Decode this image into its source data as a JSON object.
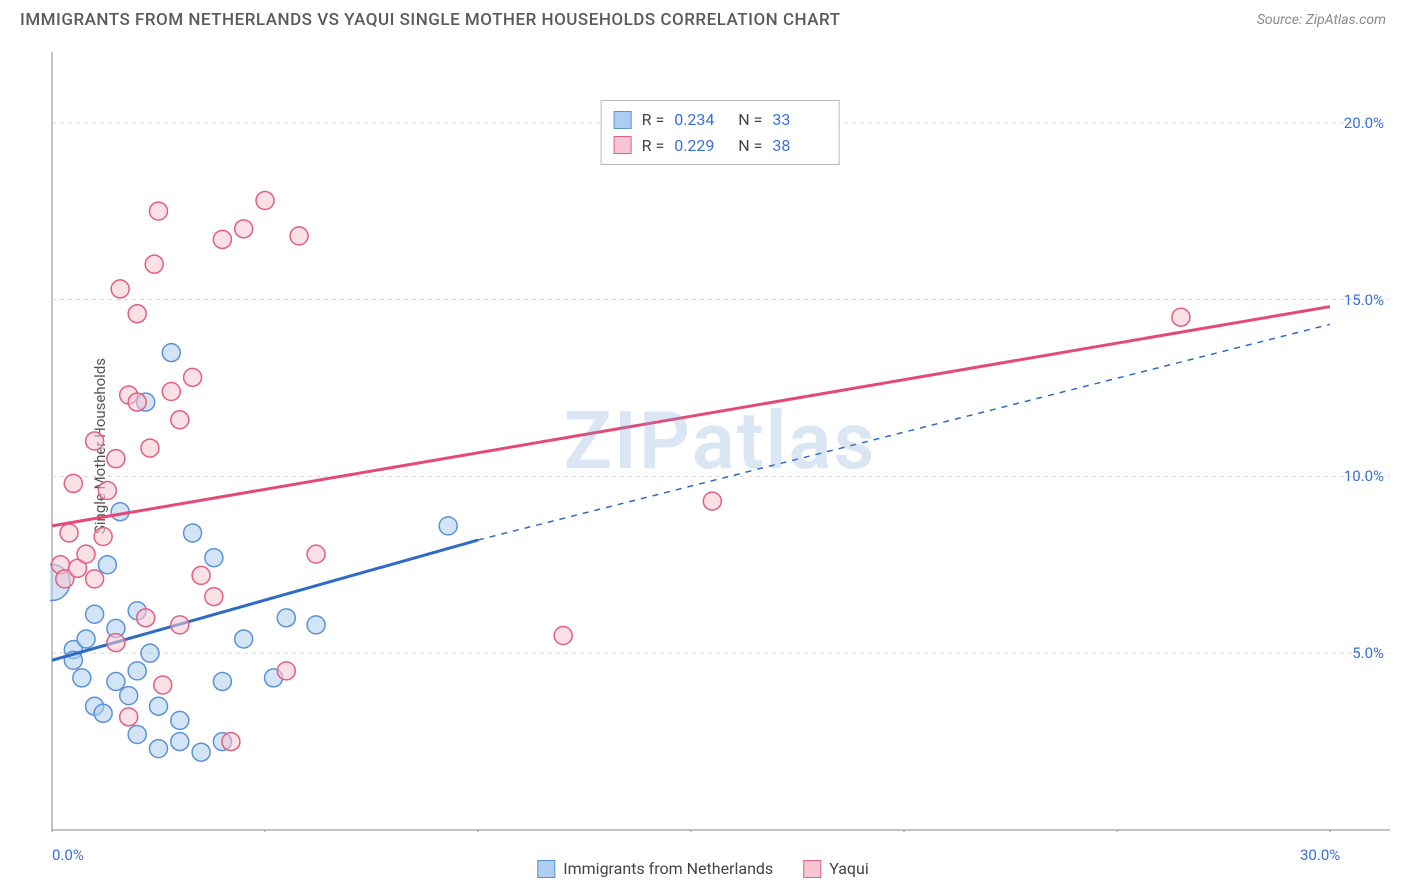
{
  "header": {
    "title": "IMMIGRANTS FROM NETHERLANDS VS YAQUI SINGLE MOTHER HOUSEHOLDS CORRELATION CHART",
    "source": "Source: ZipAtlas.com"
  },
  "ylabel": "Single Mother Households",
  "watermark": "ZIPatlas",
  "chart": {
    "type": "scatter",
    "xlim": [
      0,
      30
    ],
    "ylim": [
      0,
      22
    ],
    "x_ticks": [
      0,
      5,
      10,
      15,
      20,
      25,
      30
    ],
    "x_tick_labels": {
      "0": "0.0%",
      "30": "30.0%"
    },
    "y_gridlines": [
      5,
      10,
      15,
      20
    ],
    "y_tick_labels": {
      "5": "5.0%",
      "10": "10.0%",
      "15": "15.0%",
      "20": "20.0%"
    },
    "grid_color": "#d8d8d8",
    "grid_dash": "4,4",
    "axis_color": "#888888",
    "background": "#ffffff",
    "marker_radius": 9,
    "marker_radius_large": 18,
    "marker_stroke_width": 1.5,
    "series": [
      {
        "name": "Immigrants from Netherlands",
        "fill": "#aecdf0",
        "stroke": "#5a93d6",
        "fill_opacity": 0.55,
        "line_color": "#2f6bc4",
        "line_width": 3,
        "trend": {
          "x1": 0,
          "y1": 4.8,
          "x2": 10,
          "y2": 8.2,
          "dash_to_x": 30,
          "dash_to_y": 14.3
        },
        "points": [
          {
            "x": 0.0,
            "y": 7.0,
            "large": true
          },
          {
            "x": 0.5,
            "y": 5.1
          },
          {
            "x": 0.5,
            "y": 4.8
          },
          {
            "x": 0.7,
            "y": 4.3
          },
          {
            "x": 0.8,
            "y": 5.4
          },
          {
            "x": 1.0,
            "y": 6.1
          },
          {
            "x": 1.0,
            "y": 3.5
          },
          {
            "x": 1.2,
            "y": 3.3
          },
          {
            "x": 1.3,
            "y": 7.5
          },
          {
            "x": 1.5,
            "y": 4.2
          },
          {
            "x": 1.5,
            "y": 5.7
          },
          {
            "x": 1.6,
            "y": 9.0
          },
          {
            "x": 1.8,
            "y": 3.8
          },
          {
            "x": 2.0,
            "y": 6.2
          },
          {
            "x": 2.0,
            "y": 4.5
          },
          {
            "x": 2.0,
            "y": 2.7
          },
          {
            "x": 2.2,
            "y": 12.1
          },
          {
            "x": 2.3,
            "y": 5.0
          },
          {
            "x": 2.5,
            "y": 2.3
          },
          {
            "x": 2.5,
            "y": 3.5
          },
          {
            "x": 2.8,
            "y": 13.5
          },
          {
            "x": 3.0,
            "y": 2.5
          },
          {
            "x": 3.0,
            "y": 3.1
          },
          {
            "x": 3.3,
            "y": 8.4
          },
          {
            "x": 3.5,
            "y": 2.2
          },
          {
            "x": 3.8,
            "y": 7.7
          },
          {
            "x": 4.0,
            "y": 4.2
          },
          {
            "x": 4.0,
            "y": 2.5
          },
          {
            "x": 4.5,
            "y": 5.4
          },
          {
            "x": 5.2,
            "y": 4.3
          },
          {
            "x": 5.5,
            "y": 6.0
          },
          {
            "x": 6.2,
            "y": 5.8
          },
          {
            "x": 9.3,
            "y": 8.6
          }
        ],
        "r": "0.234",
        "n": "33"
      },
      {
        "name": "Yaqui",
        "fill": "#f7c6d2",
        "stroke": "#e06083",
        "fill_opacity": 0.55,
        "line_color": "#e34b76",
        "line_width": 3,
        "trend": {
          "x1": 0,
          "y1": 8.6,
          "x2": 30,
          "y2": 14.8
        },
        "points": [
          {
            "x": 0.2,
            "y": 7.5
          },
          {
            "x": 0.3,
            "y": 7.1
          },
          {
            "x": 0.4,
            "y": 8.4
          },
          {
            "x": 0.5,
            "y": 9.8
          },
          {
            "x": 0.6,
            "y": 7.4
          },
          {
            "x": 0.8,
            "y": 7.8
          },
          {
            "x": 1.0,
            "y": 11.0
          },
          {
            "x": 1.0,
            "y": 7.1
          },
          {
            "x": 1.2,
            "y": 8.3
          },
          {
            "x": 1.3,
            "y": 9.6
          },
          {
            "x": 1.5,
            "y": 5.3
          },
          {
            "x": 1.5,
            "y": 10.5
          },
          {
            "x": 1.6,
            "y": 15.3
          },
          {
            "x": 1.8,
            "y": 3.2
          },
          {
            "x": 1.8,
            "y": 12.3
          },
          {
            "x": 2.0,
            "y": 12.1
          },
          {
            "x": 2.0,
            "y": 14.6
          },
          {
            "x": 2.2,
            "y": 6.0
          },
          {
            "x": 2.3,
            "y": 10.8
          },
          {
            "x": 2.4,
            "y": 16.0
          },
          {
            "x": 2.5,
            "y": 17.5
          },
          {
            "x": 2.6,
            "y": 4.1
          },
          {
            "x": 2.8,
            "y": 12.4
          },
          {
            "x": 3.0,
            "y": 11.6
          },
          {
            "x": 3.0,
            "y": 5.8
          },
          {
            "x": 3.3,
            "y": 12.8
          },
          {
            "x": 3.5,
            "y": 7.2
          },
          {
            "x": 3.8,
            "y": 6.6
          },
          {
            "x": 4.0,
            "y": 16.7
          },
          {
            "x": 4.2,
            "y": 2.5
          },
          {
            "x": 4.5,
            "y": 17.0
          },
          {
            "x": 5.0,
            "y": 17.8
          },
          {
            "x": 5.5,
            "y": 4.5
          },
          {
            "x": 5.8,
            "y": 16.8
          },
          {
            "x": 6.2,
            "y": 7.8
          },
          {
            "x": 12.0,
            "y": 5.5
          },
          {
            "x": 15.5,
            "y": 9.3
          },
          {
            "x": 26.5,
            "y": 14.5
          }
        ],
        "r": "0.229",
        "n": "38"
      }
    ]
  },
  "legend_bottom": [
    {
      "label": "Immigrants from Netherlands",
      "fill": "#aecdf0",
      "stroke": "#5a93d6"
    },
    {
      "label": "Yaqui",
      "fill": "#f7c6d2",
      "stroke": "#e06083"
    }
  ]
}
